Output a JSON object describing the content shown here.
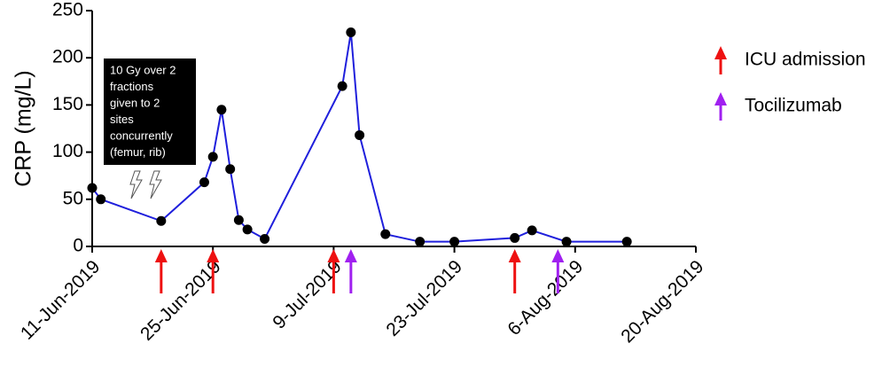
{
  "chart_data": {
    "type": "line",
    "y_label": "CRP (mg/L)",
    "xlim": [
      "2019-06-11",
      "2019-08-20"
    ],
    "xticks": [
      {
        "value": "2019-06-11",
        "label": "11-Jun-2019"
      },
      {
        "value": "2019-06-25",
        "label": "25-Jun-2019"
      },
      {
        "value": "2019-07-09",
        "label": "9-Jul-2019"
      },
      {
        "value": "2019-07-23",
        "label": "23-Jul-2019"
      },
      {
        "value": "2019-08-06",
        "label": "6-Aug-2019"
      },
      {
        "value": "2019-08-20",
        "label": "20-Aug-2019"
      }
    ],
    "ylim": [
      0,
      250
    ],
    "yticks": [
      0,
      50,
      100,
      150,
      200,
      250
    ],
    "series": [
      {
        "color": "#1f1fdc",
        "x": [
          "2019-06-11",
          "2019-06-12",
          "2019-06-19",
          "2019-06-24",
          "2019-06-25",
          "2019-06-26",
          "2019-06-27",
          "2019-06-28",
          "2019-06-29",
          "2019-07-01",
          "2019-07-10",
          "2019-07-11",
          "2019-07-12",
          "2019-07-15",
          "2019-07-19",
          "2019-07-23",
          "2019-07-30",
          "2019-08-01",
          "2019-08-05",
          "2019-08-12"
        ],
        "values": [
          62,
          50,
          27,
          68,
          95,
          145,
          82,
          28,
          18,
          8,
          170,
          227,
          118,
          13,
          5,
          5,
          9,
          17,
          5,
          5
        ]
      }
    ],
    "events": [
      {
        "name": "ICU admission",
        "color": "#ee1111",
        "dates": [
          "2019-06-19",
          "2019-06-25",
          "2019-07-09",
          "2019-07-30"
        ]
      },
      {
        "name": "Tocilizumab",
        "color": "#a020f0",
        "dates": [
          "2019-07-11",
          "2019-08-04"
        ]
      }
    ],
    "annotation": [
      "10 Gy over 2",
      "fractions",
      "given to 2",
      "sites",
      "concurrently",
      "(femur, rib)"
    ]
  }
}
